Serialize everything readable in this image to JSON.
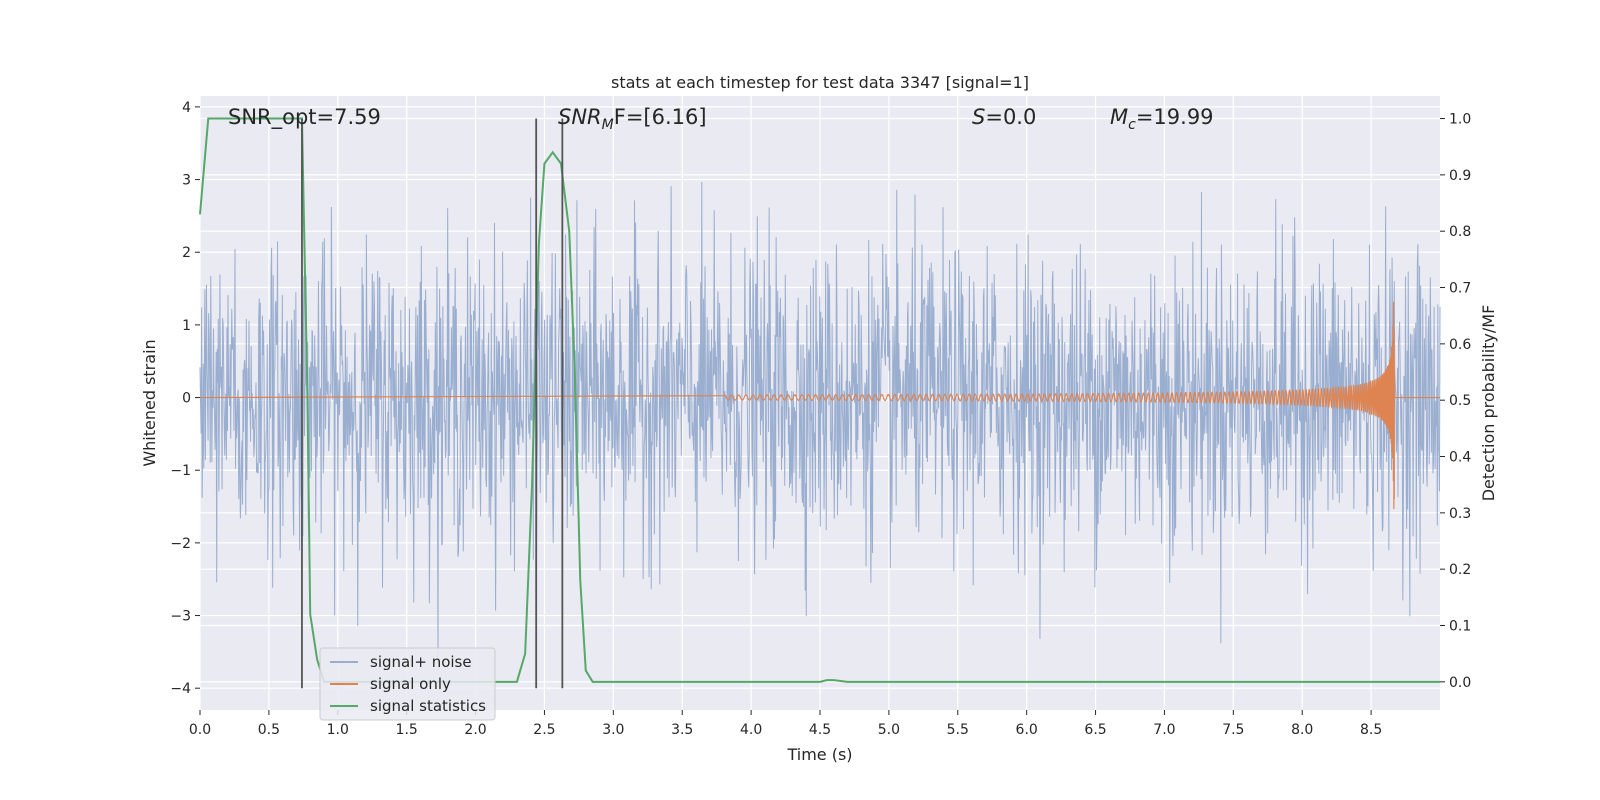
{
  "chart_data": {
    "type": "line",
    "title": "stats at each timestep for test data 3347 [signal=1]",
    "xlabel": "Time (s)",
    "ylabel": "Whitened strain",
    "y2label": "Detection probability/MF",
    "xlim": [
      0,
      9.0
    ],
    "ylim": [
      -4.3,
      4.15
    ],
    "y2lim": [
      -0.05,
      1.04
    ],
    "xticks": [
      0.0,
      0.5,
      1.0,
      1.5,
      2.0,
      2.5,
      3.0,
      3.5,
      4.0,
      4.5,
      5.0,
      5.5,
      6.0,
      6.5,
      7.0,
      7.5,
      8.0,
      8.5
    ],
    "xtick_labels": [
      "0.0",
      "0.5",
      "1.0",
      "1.5",
      "2.0",
      "2.5",
      "3.0",
      "3.5",
      "4.0",
      "4.5",
      "5.0",
      "5.5",
      "6.0",
      "6.5",
      "7.0",
      "7.5",
      "8.0",
      "8.5"
    ],
    "yticks": [
      4,
      3,
      2,
      1,
      0,
      -1,
      -2,
      -3,
      -4
    ],
    "ytick_labels": [
      "4",
      "3",
      "2",
      "1",
      "0",
      "−1",
      "−2",
      "−3",
      "−4"
    ],
    "y2ticks": [
      1.0,
      0.9,
      0.8,
      0.7,
      0.6,
      0.5,
      0.4,
      0.3,
      0.2,
      0.1,
      0.0
    ],
    "y2tick_labels": [
      "1.0",
      "0.9",
      "0.8",
      "0.7",
      "0.6",
      "0.5",
      "0.4",
      "0.3",
      "0.2",
      "0.1",
      "0.0"
    ],
    "grid": true,
    "legend_position": "bottom-left",
    "annotations": {
      "snr_opt": "SNR_opt=7.59",
      "snr_mf_main": "SNR",
      "snr_mf_sub": "M",
      "snr_mf_rest": "F=[6.16]",
      "s_main": "S",
      "s_rest": "=0.0",
      "mc_main": "M",
      "mc_sub": "c",
      "mc_rest": "=19.99"
    },
    "vertical_lines_x": [
      0.74,
      2.44,
      2.63
    ],
    "series": [
      {
        "name": "signal+ noise",
        "color": "#9aaed0",
        "noise_sigma": 1.0,
        "samples": 2304
      },
      {
        "name": "signal only",
        "color": "#dd8452",
        "chirp_start": 3.8,
        "chirp_end": 8.67,
        "peak_amplitude": 1.6
      },
      {
        "name": "signal statistics",
        "color": "#55a868",
        "axis": "right",
        "x": [
          0.0,
          0.06,
          0.12,
          0.2,
          0.5,
          0.7,
          0.74,
          0.78,
          0.8,
          0.85,
          0.9,
          1.0,
          2.0,
          2.2,
          2.3,
          2.36,
          2.41,
          2.46,
          2.5,
          2.56,
          2.62,
          2.68,
          2.72,
          2.76,
          2.8,
          2.85,
          3.0,
          4.0,
          4.5,
          4.55,
          4.6,
          4.7,
          9.0
        ],
        "y": [
          0.83,
          1.0,
          1.0,
          1.0,
          1.0,
          1.0,
          1.0,
          0.5,
          0.12,
          0.04,
          0.0,
          0.0,
          0.0,
          0.0,
          0.0,
          0.05,
          0.35,
          0.78,
          0.92,
          0.94,
          0.92,
          0.8,
          0.55,
          0.18,
          0.02,
          0.0,
          0.0,
          0.0,
          0.0,
          0.003,
          0.003,
          0.0,
          0.0
        ]
      }
    ]
  }
}
